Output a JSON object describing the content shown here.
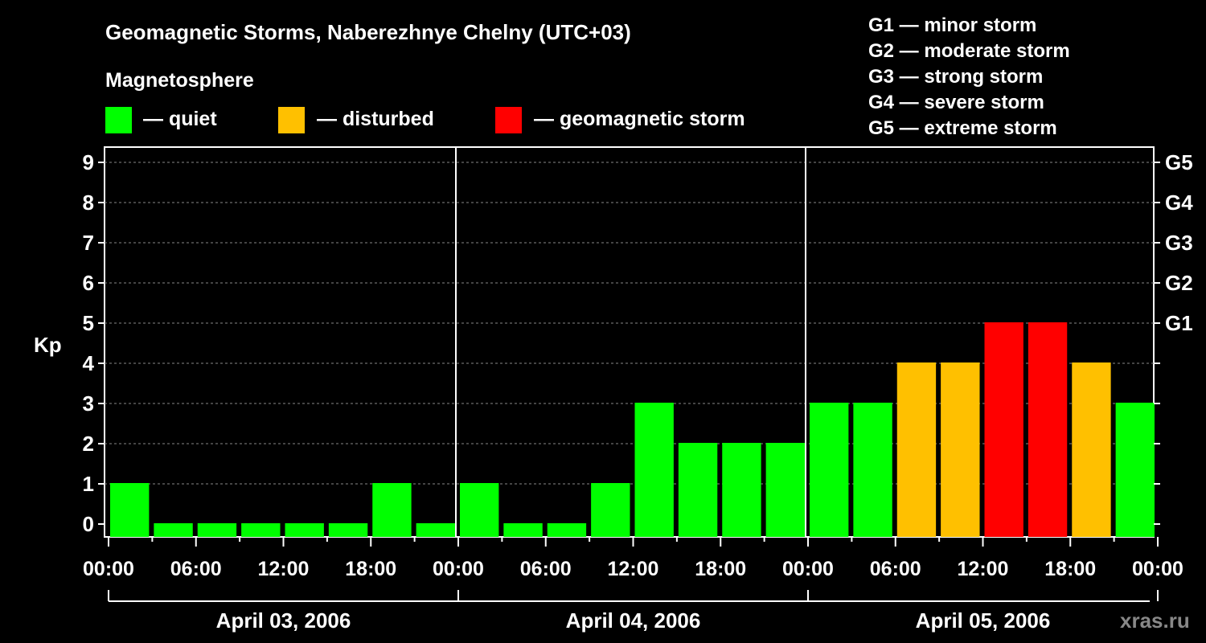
{
  "header": {
    "title": "Geomagnetic Storms, Naberezhnye Chelny (UTC+03)",
    "legend_heading": "Magnetosphere",
    "legend": [
      {
        "label": "— quiet",
        "color": "#00ff00"
      },
      {
        "label": "— disturbed",
        "color": "#ffc000"
      },
      {
        "label": "— geomagnetic storm",
        "color": "#ff0000"
      }
    ],
    "storm_scale": [
      "G1 — minor storm",
      "G2 — moderate storm",
      "G3 — strong storm",
      "G4 — severe storm",
      "G5 — extreme storm"
    ]
  },
  "watermark": "xras.ru",
  "colors": {
    "quiet": "#00ff00",
    "disturbed": "#ffc000",
    "storm": "#ff0000",
    "background": "#000000",
    "axis": "#ffffff"
  },
  "chart_data": {
    "type": "bar",
    "ylabel": "Kp",
    "ylim": [
      0,
      9
    ],
    "yticks": [
      "0",
      "1",
      "2",
      "3",
      "4",
      "5",
      "6",
      "7",
      "8",
      "9"
    ],
    "right_ticks": [
      {
        "kp": 5,
        "label": "G1"
      },
      {
        "kp": 6,
        "label": "G2"
      },
      {
        "kp": 7,
        "label": "G3"
      },
      {
        "kp": 8,
        "label": "G4"
      },
      {
        "kp": 9,
        "label": "G5"
      }
    ],
    "grid": "dashed horizontal",
    "x_tick_labels": [
      "00:00",
      "06:00",
      "12:00",
      "18:00",
      "00:00",
      "06:00",
      "12:00",
      "18:00",
      "00:00",
      "06:00",
      "12:00",
      "18:00",
      "00:00"
    ],
    "days": [
      "April 03, 2006",
      "April 04, 2006",
      "April 05, 2006"
    ],
    "interval_hours": 3,
    "values": [
      1,
      0,
      0,
      0,
      0,
      0,
      1,
      0,
      1,
      0,
      0,
      1,
      3,
      2,
      2,
      2,
      3,
      3,
      4,
      4,
      5,
      5,
      4,
      3
    ],
    "bar_levels": [
      "quiet",
      "quiet",
      "quiet",
      "quiet",
      "quiet",
      "quiet",
      "quiet",
      "quiet",
      "quiet",
      "quiet",
      "quiet",
      "quiet",
      "quiet",
      "quiet",
      "quiet",
      "quiet",
      "quiet",
      "quiet",
      "disturbed",
      "disturbed",
      "storm",
      "storm",
      "disturbed",
      "quiet"
    ]
  }
}
